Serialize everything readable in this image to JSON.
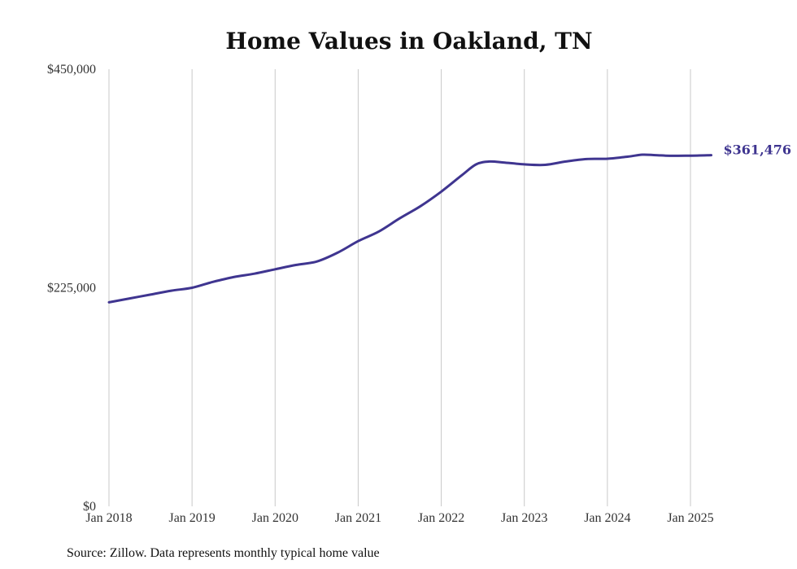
{
  "chart_data": {
    "type": "line",
    "title": "Home Values in Oakland, TN",
    "xlabel": "",
    "ylabel": "",
    "ylim": [
      0,
      450000
    ],
    "y_ticks": [
      {
        "value": 0,
        "label": "$0"
      },
      {
        "value": 225000,
        "label": "$225,000"
      },
      {
        "value": 450000,
        "label": "$450,000"
      }
    ],
    "x_ticks": [
      {
        "value": 2018,
        "label": "Jan 2018"
      },
      {
        "value": 2019,
        "label": "Jan 2019"
      },
      {
        "value": 2020,
        "label": "Jan 2020"
      },
      {
        "value": 2021,
        "label": "Jan 2021"
      },
      {
        "value": 2022,
        "label": "Jan 2022"
      },
      {
        "value": 2023,
        "label": "Jan 2023"
      },
      {
        "value": 2024,
        "label": "Jan 2024"
      },
      {
        "value": 2025,
        "label": "Jan 2025"
      }
    ],
    "xlim": [
      2018,
      2025.25
    ],
    "grid": "vertical",
    "series": [
      {
        "color": "#3f3590",
        "end_label": "$361,476",
        "points": [
          {
            "x": 2018.0,
            "y": 210000
          },
          {
            "x": 2018.25,
            "y": 214000
          },
          {
            "x": 2018.5,
            "y": 218000
          },
          {
            "x": 2018.75,
            "y": 222000
          },
          {
            "x": 2019.0,
            "y": 225000
          },
          {
            "x": 2019.25,
            "y": 231000
          },
          {
            "x": 2019.5,
            "y": 236000
          },
          {
            "x": 2019.75,
            "y": 239500
          },
          {
            "x": 2020.0,
            "y": 244000
          },
          {
            "x": 2020.25,
            "y": 248500
          },
          {
            "x": 2020.5,
            "y": 252000
          },
          {
            "x": 2020.75,
            "y": 261000
          },
          {
            "x": 2021.0,
            "y": 273000
          },
          {
            "x": 2021.25,
            "y": 283000
          },
          {
            "x": 2021.5,
            "y": 296500
          },
          {
            "x": 2021.75,
            "y": 309000
          },
          {
            "x": 2022.0,
            "y": 324000
          },
          {
            "x": 2022.25,
            "y": 341000
          },
          {
            "x": 2022.42,
            "y": 352000
          },
          {
            "x": 2022.58,
            "y": 355000
          },
          {
            "x": 2022.75,
            "y": 354000
          },
          {
            "x": 2023.0,
            "y": 352000
          },
          {
            "x": 2023.25,
            "y": 351500
          },
          {
            "x": 2023.5,
            "y": 355000
          },
          {
            "x": 2023.75,
            "y": 357500
          },
          {
            "x": 2024.0,
            "y": 357800
          },
          {
            "x": 2024.25,
            "y": 360000
          },
          {
            "x": 2024.42,
            "y": 362000
          },
          {
            "x": 2024.58,
            "y": 361500
          },
          {
            "x": 2024.75,
            "y": 360800
          },
          {
            "x": 2025.0,
            "y": 361000
          },
          {
            "x": 2025.25,
            "y": 361476
          }
        ]
      }
    ]
  },
  "footer": {
    "source": "Source: Zillow. Data represents monthly typical home value"
  }
}
